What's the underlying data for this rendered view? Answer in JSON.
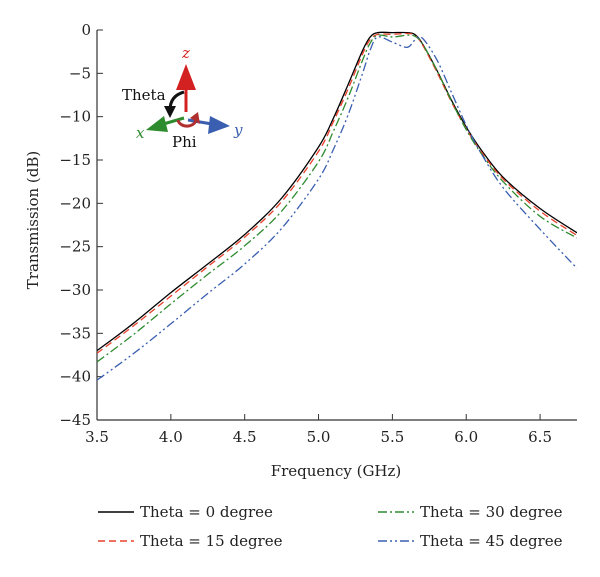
{
  "chart_data": {
    "type": "line",
    "xlabel": "Frequency (GHz)",
    "ylabel": "Transmission (dB)",
    "xlim": [
      3.5,
      6.75
    ],
    "ylim": [
      -45,
      0
    ],
    "xticks": [
      "3.5",
      "4.0",
      "4.5",
      "5.0",
      "5.5",
      "6.0",
      "6.5"
    ],
    "yticks": [
      "0",
      "−5",
      "−10",
      "−15",
      "−20",
      "−25",
      "−30",
      "−35",
      "−40",
      "−45"
    ],
    "grid": false,
    "legend_position": "bottom",
    "series": [
      {
        "name": "Theta = 0 degree",
        "color": "#000000",
        "dash": "solid",
        "x": [
          3.5,
          3.75,
          4.0,
          4.25,
          4.5,
          4.75,
          5.0,
          5.1,
          5.2,
          5.3,
          5.35,
          5.4,
          5.5,
          5.6,
          5.65,
          5.7,
          5.8,
          5.9,
          6.0,
          6.1,
          6.25,
          6.5,
          6.75
        ],
        "y": [
          -37.0,
          -33.8,
          -30.3,
          -27.0,
          -23.6,
          -19.4,
          -13.5,
          -10.2,
          -6.3,
          -2.3,
          -0.8,
          -0.3,
          -0.3,
          -0.3,
          -0.5,
          -1.5,
          -4.6,
          -8.1,
          -11.2,
          -13.8,
          -17.0,
          -20.6,
          -23.4
        ]
      },
      {
        "name": "Theta = 15 degree",
        "color": "#e8412b",
        "dash": "dashed",
        "x": [
          3.5,
          3.75,
          4.0,
          4.25,
          4.5,
          4.75,
          5.0,
          5.1,
          5.2,
          5.3,
          5.35,
          5.4,
          5.5,
          5.6,
          5.65,
          5.7,
          5.8,
          5.9,
          6.0,
          6.1,
          6.25,
          6.5,
          6.75
        ],
        "y": [
          -37.3,
          -34.1,
          -30.7,
          -27.3,
          -23.9,
          -19.8,
          -14.0,
          -10.6,
          -6.8,
          -2.7,
          -1.1,
          -0.5,
          -0.5,
          -0.4,
          -0.6,
          -1.6,
          -4.8,
          -8.3,
          -11.4,
          -14.0,
          -17.2,
          -20.9,
          -23.7
        ]
      },
      {
        "name": "Theta = 30 degree",
        "color": "#2e8b2e",
        "dash": "dash-dot",
        "x": [
          3.5,
          3.75,
          4.0,
          4.25,
          4.5,
          4.75,
          5.0,
          5.1,
          5.2,
          5.3,
          5.35,
          5.4,
          5.5,
          5.6,
          5.65,
          5.7,
          5.8,
          5.9,
          6.0,
          6.1,
          6.25,
          6.5,
          6.75
        ],
        "y": [
          -38.3,
          -35.1,
          -31.6,
          -28.2,
          -24.9,
          -20.9,
          -15.2,
          -11.7,
          -7.8,
          -3.4,
          -1.5,
          -0.6,
          -0.8,
          -0.6,
          -0.7,
          -1.5,
          -4.6,
          -8.2,
          -11.5,
          -14.2,
          -17.5,
          -21.5,
          -24.0
        ]
      },
      {
        "name": "Theta = 45 degree",
        "color": "#3a5fb0",
        "dash": "dash-dot-dot",
        "x": [
          3.5,
          3.75,
          4.0,
          4.25,
          4.5,
          4.75,
          5.0,
          5.1,
          5.2,
          5.3,
          5.35,
          5.4,
          5.5,
          5.6,
          5.65,
          5.7,
          5.8,
          5.9,
          6.0,
          6.1,
          6.25,
          6.5,
          6.75
        ],
        "y": [
          -40.4,
          -37.3,
          -33.9,
          -30.4,
          -27.0,
          -22.9,
          -17.2,
          -13.8,
          -9.8,
          -4.9,
          -2.3,
          -0.8,
          -1.4,
          -2.0,
          -1.2,
          -0.9,
          -3.4,
          -7.2,
          -11.0,
          -14.2,
          -18.2,
          -23.0,
          -27.5
        ]
      }
    ],
    "inset": {
      "labels": {
        "theta": "Theta",
        "phi": "Phi",
        "x": "x",
        "y": "y",
        "z": "z"
      },
      "colors": {
        "x": "#2e8b2e",
        "y": "#3a5fb0",
        "z": "#d32020",
        "phi": "#b03030",
        "theta": "#111111"
      }
    }
  }
}
